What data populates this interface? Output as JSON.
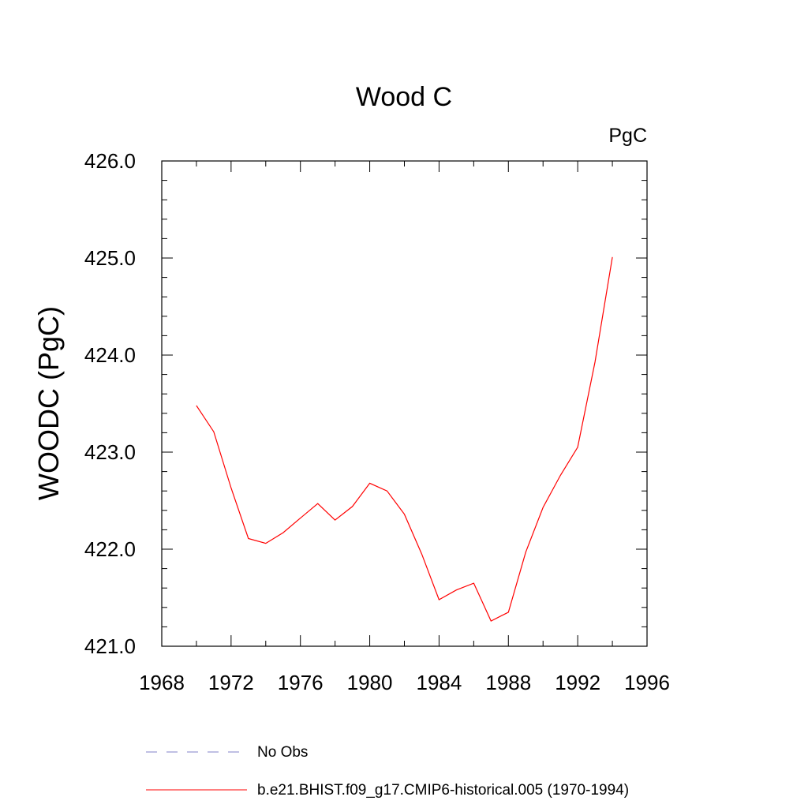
{
  "chart_data": {
    "type": "line",
    "title": "Wood C",
    "units_label": "PgC",
    "xlabel": "",
    "ylabel": "WOODC  (PgC)",
    "xlim": [
      1968,
      1996
    ],
    "ylim": [
      421.0,
      426.0
    ],
    "x_ticks": [
      1968,
      1972,
      1976,
      1980,
      1984,
      1988,
      1992,
      1996
    ],
    "x_tick_labels": [
      "1968",
      "1972",
      "1976",
      "1980",
      "1984",
      "1988",
      "1992",
      "1996"
    ],
    "y_ticks": [
      421.0,
      422.0,
      423.0,
      424.0,
      425.0,
      426.0
    ],
    "y_tick_labels": [
      "421.0",
      "422.0",
      "423.0",
      "424.0",
      "425.0",
      "426.0"
    ],
    "grid": false,
    "legend_position": "bottom",
    "series": [
      {
        "name": "No Obs",
        "color": "#8080c8",
        "style": "dashed",
        "x": [],
        "values": []
      },
      {
        "name": "b.e21.BHIST.f09_g17.CMIP6-historical.005 (1970-1994)",
        "color": "#ff0000",
        "style": "solid",
        "x": [
          1970,
          1971,
          1972,
          1973,
          1974,
          1975,
          1976,
          1977,
          1978,
          1979,
          1980,
          1981,
          1982,
          1983,
          1984,
          1985,
          1986,
          1987,
          1988,
          1989,
          1990,
          1991,
          1992,
          1993,
          1994
        ],
        "values": [
          423.48,
          423.21,
          422.63,
          422.11,
          422.06,
          422.17,
          422.32,
          422.47,
          422.3,
          422.44,
          422.68,
          422.6,
          422.36,
          421.95,
          421.48,
          421.58,
          421.65,
          421.26,
          421.35,
          421.97,
          422.43,
          422.76,
          423.05,
          423.93,
          425.01
        ]
      }
    ]
  }
}
